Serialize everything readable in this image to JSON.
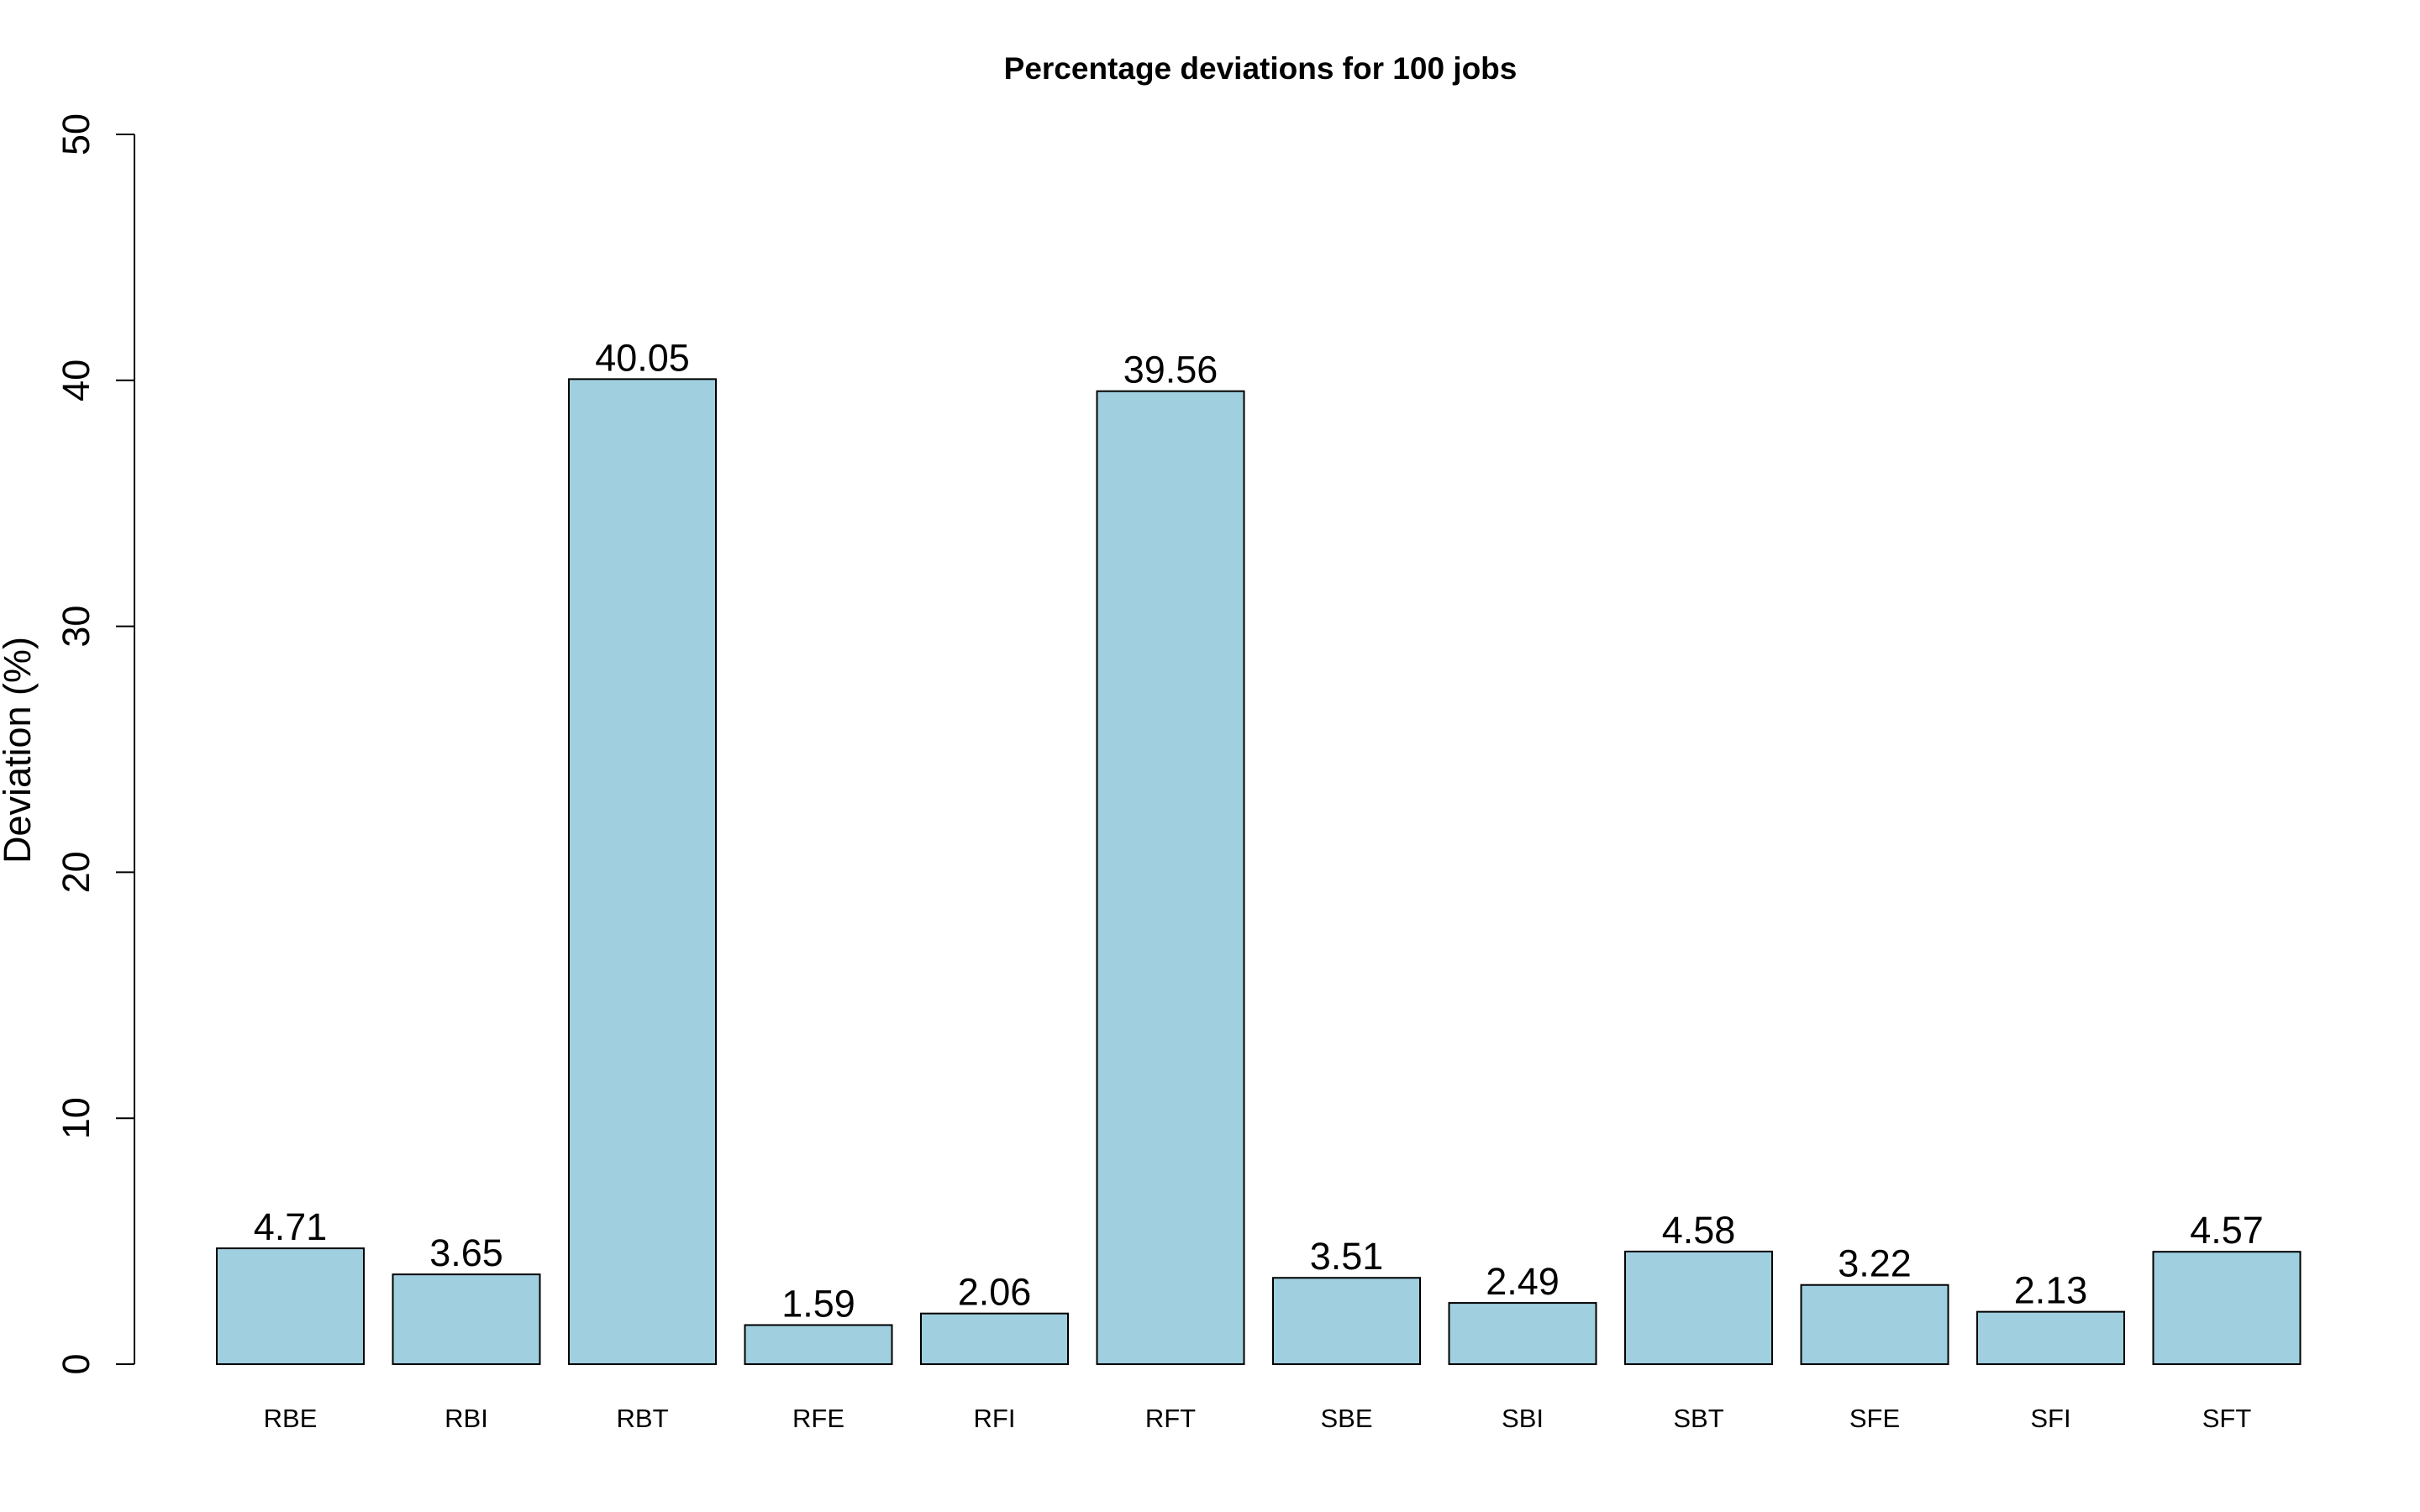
{
  "chart_data": {
    "type": "bar",
    "title": "Percentage deviations for 100 jobs",
    "xlabel": "",
    "ylabel": "Deviation (%)",
    "ylim": [
      0,
      50
    ],
    "yticks": [
      0,
      10,
      20,
      30,
      40,
      50
    ],
    "grid": false,
    "categories": [
      "RBE",
      "RBI",
      "RBT",
      "RFE",
      "RFI",
      "RFT",
      "SBE",
      "SBI",
      "SBT",
      "SFE",
      "SFI",
      "SFT"
    ],
    "values": [
      4.71,
      3.65,
      40.05,
      1.59,
      2.06,
      39.56,
      3.51,
      2.49,
      4.58,
      3.22,
      2.13,
      4.57
    ],
    "value_labels": [
      "4.71",
      "3.65",
      "40.05",
      "1.59",
      "2.06",
      "39.56",
      "3.51",
      "2.49",
      "4.58",
      "3.22",
      "2.13",
      "4.57"
    ],
    "bar_color": "#a0cfe0",
    "edge_color": "#000000"
  }
}
